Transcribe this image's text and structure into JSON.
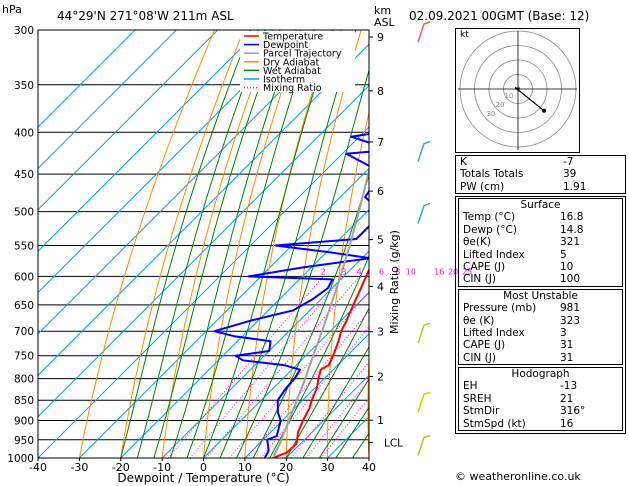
{
  "header": {
    "location": "44°29'N  271°08'W  211m  ASL",
    "datetime": "02.09.2021  00GMT  (Base: 12)",
    "hpa_label": "hPa",
    "km_label": "km",
    "asl_label": "ASL"
  },
  "chart_data": {
    "type": "line",
    "xlabel": "Dewpoint / Temperature (°C)",
    "ylabel": "Mixing Ratio (g/kg)",
    "x_ticks": [
      "-40",
      "-30",
      "-20",
      "-10",
      "0",
      "10",
      "20",
      "30",
      "40"
    ],
    "pressure_ticks": [
      "300",
      "350",
      "400",
      "450",
      "500",
      "550",
      "600",
      "650",
      "700",
      "750",
      "800",
      "850",
      "900",
      "950",
      "1000"
    ],
    "km_ticks": [
      {
        "label": "9",
        "p": 306
      },
      {
        "label": "8",
        "p": 356
      },
      {
        "label": "7",
        "p": 411
      },
      {
        "label": "6",
        "p": 472
      },
      {
        "label": "5",
        "p": 541
      },
      {
        "label": "4",
        "p": 617
      },
      {
        "label": "3",
        "p": 701
      },
      {
        "label": "2",
        "p": 795
      },
      {
        "label": "1",
        "p": 899
      }
    ],
    "lcl_label": "LCL",
    "lcl_p": 957,
    "mixing_ratio_labels": [
      "2",
      "3",
      "4",
      "6",
      "8",
      "10",
      "16",
      "20",
      "25"
    ],
    "xlim": [
      -40,
      40
    ],
    "plim": [
      300,
      1000
    ],
    "legend": [
      "Temperature",
      "Dewpoint",
      "Parcel Trajectory",
      "Dry Adiabat",
      "Wet Adiabat",
      "Isotherm",
      "Mixing Ratio"
    ],
    "legend_colors": [
      "#ff0000",
      "#0000ff",
      "#a0a0a0",
      "#ff8c00",
      "#008000",
      "#00a0ff",
      "#ff00ff"
    ],
    "series": [
      {
        "name": "Temperature",
        "color": "#ff0000",
        "points": [
          [
            1000,
            16.8
          ],
          [
            985,
            18.8
          ],
          [
            960,
            19
          ],
          [
            930,
            16.6
          ],
          [
            900,
            15
          ],
          [
            870,
            13.6
          ],
          [
            850,
            12.2
          ],
          [
            820,
            10.4
          ],
          [
            800,
            8.6
          ],
          [
            780,
            7
          ],
          [
            770,
            7.8
          ],
          [
            750,
            6.6
          ],
          [
            720,
            4.4
          ],
          [
            700,
            2.6
          ],
          [
            680,
            1.4
          ],
          [
            650,
            -0.8
          ],
          [
            620,
            -3
          ],
          [
            600,
            -4.6
          ],
          [
            570,
            -7
          ],
          [
            550,
            -9
          ],
          [
            520,
            -12
          ],
          [
            500,
            -14.6
          ],
          [
            470,
            -18
          ],
          [
            450,
            -20.8
          ],
          [
            420,
            -24.6
          ],
          [
            400,
            -27.8
          ],
          [
            380,
            -30.4
          ],
          [
            350,
            -35
          ],
          [
            320,
            -40.2
          ],
          [
            300,
            -44
          ]
        ]
      },
      {
        "name": "Dewpoint",
        "color": "#0000ff",
        "points": [
          [
            1000,
            14.8
          ],
          [
            980,
            14
          ],
          [
            960,
            12
          ],
          [
            950,
            11
          ],
          [
            940,
            12.4
          ],
          [
            920,
            11
          ],
          [
            900,
            9.6
          ],
          [
            880,
            7
          ],
          [
            850,
            4
          ],
          [
            820,
            3
          ],
          [
            800,
            2.8
          ],
          [
            780,
            2
          ],
          [
            770,
            -3
          ],
          [
            760,
            -14
          ],
          [
            750,
            -17
          ],
          [
            740,
            -10
          ],
          [
            720,
            -12
          ],
          [
            710,
            -22
          ],
          [
            700,
            -28
          ],
          [
            680,
            -22
          ],
          [
            660,
            -14
          ],
          [
            640,
            -12
          ],
          [
            620,
            -11
          ],
          [
            605,
            -12
          ],
          [
            600,
            -33
          ],
          [
            585,
            -22
          ],
          [
            570,
            -8
          ],
          [
            560,
            -20
          ],
          [
            550,
            -34
          ],
          [
            540,
            -16
          ],
          [
            520,
            -16
          ],
          [
            500,
            -16.6
          ],
          [
            480,
            -24
          ],
          [
            470,
            -24.6
          ],
          [
            440,
            -30.4
          ],
          [
            425,
            -39
          ],
          [
            415,
            -18
          ],
          [
            412,
            -36
          ],
          [
            405,
            -42
          ],
          [
            395,
            -30
          ],
          [
            380,
            -38
          ],
          [
            360,
            -40
          ],
          [
            340,
            -42
          ],
          [
            320,
            -44
          ],
          [
            310,
            -42
          ],
          [
            300,
            -42.6
          ]
        ]
      },
      {
        "name": "Parcel Trajectory",
        "color": "#a0a0a0",
        "points": [
          [
            1000,
            16.8
          ],
          [
            957,
            14.8
          ],
          [
            900,
            11.6
          ],
          [
            850,
            8.6
          ],
          [
            800,
            5.4
          ],
          [
            750,
            1.8
          ],
          [
            700,
            -2
          ],
          [
            650,
            -6.2
          ],
          [
            600,
            -10.8
          ],
          [
            550,
            -16
          ],
          [
            500,
            -22
          ],
          [
            450,
            -28.8
          ],
          [
            400,
            -36.6
          ],
          [
            350,
            -45.4
          ],
          [
            300,
            -55
          ]
        ]
      }
    ],
    "hodograph": {
      "label": "kt",
      "rings_kt": [
        10,
        20,
        30,
        40
      ],
      "ring_labels": [
        "10",
        "20",
        "30"
      ],
      "points": [
        [
          1,
          1
        ],
        [
          0,
          0
        ],
        [
          -2,
          1
        ],
        [
          18,
          -15
        ]
      ]
    }
  },
  "indices": {
    "top": [
      {
        "label": "K",
        "value": "-7"
      },
      {
        "label": "Totals Totals",
        "value": "39"
      },
      {
        "label": "PW (cm)",
        "value": "1.91"
      }
    ],
    "surface": {
      "title": "Surface",
      "rows": [
        {
          "label": "Temp (°C)",
          "value": "16.8"
        },
        {
          "label": "Dewp (°C)",
          "value": "14.8"
        },
        {
          "label": "θe(K)",
          "value": "321"
        },
        {
          "label": "Lifted Index",
          "value": "5"
        },
        {
          "label": "CAPE (J)",
          "value": "10"
        },
        {
          "label": "CIN (J)",
          "value": "100"
        }
      ]
    },
    "most_unstable": {
      "title": "Most Unstable",
      "rows": [
        {
          "label": "Pressure (mb)",
          "value": "981"
        },
        {
          "label": "θe (K)",
          "value": "323"
        },
        {
          "label": "Lifted Index",
          "value": "3"
        },
        {
          "label": "CAPE (J)",
          "value": "31"
        },
        {
          "label": "CIN (J)",
          "value": "31"
        }
      ]
    },
    "hodograph": {
      "title": "Hodograph",
      "rows": [
        {
          "label": "EH",
          "value": "-13"
        },
        {
          "label": "SREH",
          "value": "21"
        },
        {
          "label": "StmDir",
          "value": "316°"
        },
        {
          "label": "StmSpd (kt)",
          "value": "16"
        }
      ]
    }
  },
  "credit": "© weatheronline.co.uk"
}
